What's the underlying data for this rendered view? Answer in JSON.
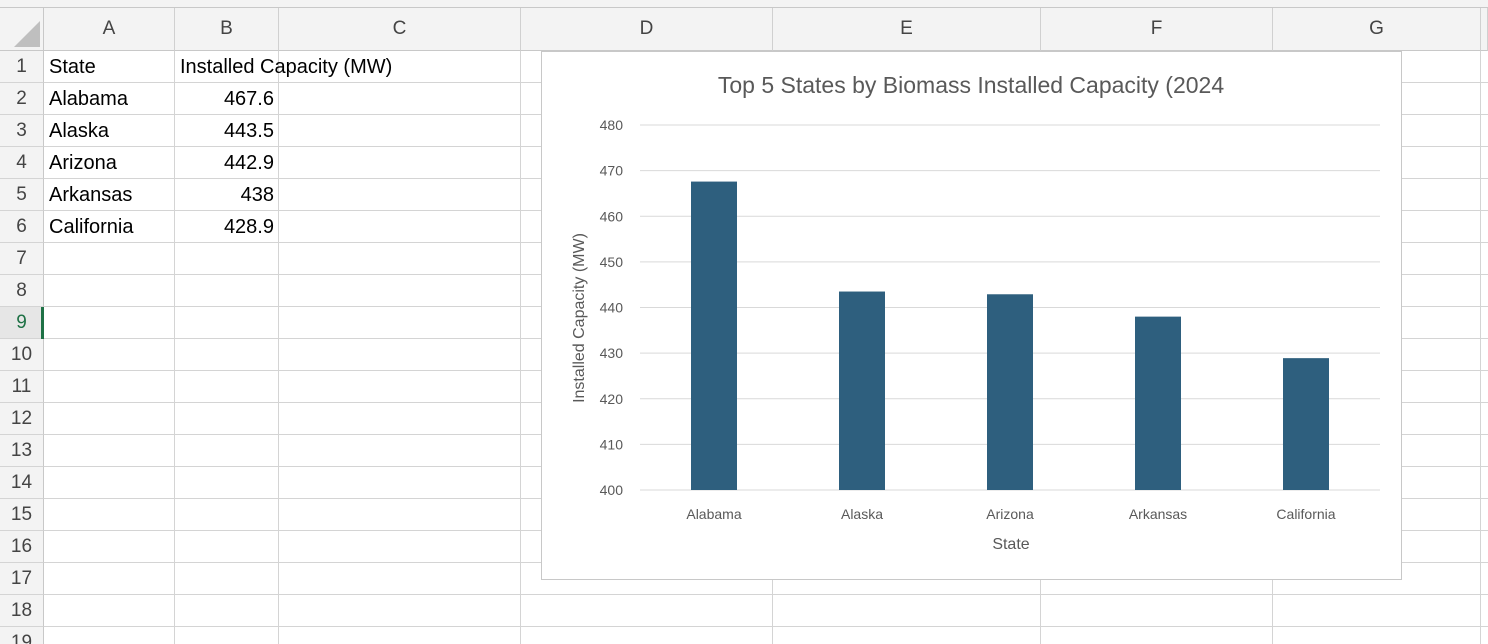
{
  "sheet": {
    "columns": [
      "A",
      "B",
      "C",
      "D",
      "E",
      "F",
      "G"
    ],
    "rows": [
      "1",
      "2",
      "3",
      "4",
      "5",
      "6",
      "7",
      "8",
      "9",
      "10",
      "11",
      "12",
      "13",
      "14",
      "15",
      "16",
      "17",
      "18",
      "19"
    ],
    "active_row": "9",
    "header": {
      "state": "State",
      "capacity": "Installed Capacity (MW)"
    },
    "data": [
      {
        "state": "Alabama",
        "capacity": "467.6"
      },
      {
        "state": "Alaska",
        "capacity": "443.5"
      },
      {
        "state": "Arizona",
        "capacity": "442.9"
      },
      {
        "state": "Arkansas",
        "capacity": "438"
      },
      {
        "state": "California",
        "capacity": "428.9"
      }
    ]
  },
  "chart_data": {
    "type": "bar",
    "title": "Top 5 States by Biomass Installed Capacity (2024",
    "xlabel": "State",
    "ylabel": "Installed Capacity (MW)",
    "categories": [
      "Alabama",
      "Alaska",
      "Arizona",
      "Arkansas",
      "California"
    ],
    "values": [
      467.6,
      443.5,
      442.9,
      438,
      428.9
    ],
    "ylim": [
      400,
      480
    ],
    "yticks": [
      400,
      410,
      420,
      430,
      440,
      450,
      460,
      470,
      480
    ],
    "grid": true,
    "legend": "none",
    "bar_color": "#2e5f7e"
  },
  "colors": {
    "gridline": "#d4d4d4",
    "header_bg": "#f3f3f3",
    "active": "#1e7145"
  }
}
